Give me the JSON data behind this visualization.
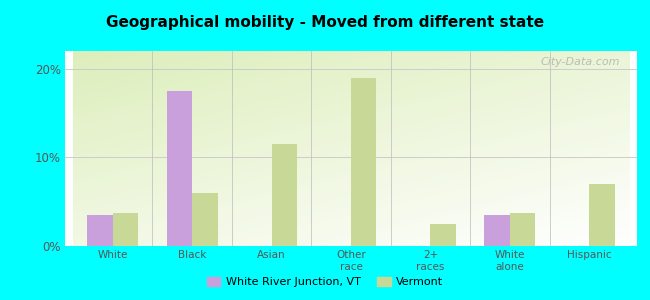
{
  "title": "Geographical mobility - Moved from different state",
  "categories": [
    "White",
    "Black",
    "Asian",
    "Other\nrace",
    "2+\nraces",
    "White\nalone",
    "Hispanic"
  ],
  "wrj_values": [
    3.5,
    17.5,
    0,
    0,
    0,
    3.5,
    0
  ],
  "vt_values": [
    3.7,
    6.0,
    11.5,
    19.0,
    2.5,
    3.7,
    7.0
  ],
  "wrj_color": "#c9a0dc",
  "vt_color": "#c8d896",
  "background_color": "#00ffff",
  "ylim": [
    0,
    22
  ],
  "yticks": [
    0,
    10,
    20
  ],
  "ytick_labels": [
    "0%",
    "10%",
    "20%"
  ],
  "legend_label_wrj": "White River Junction, VT",
  "legend_label_vt": "Vermont",
  "bar_width": 0.32,
  "watermark": "City-Data.com"
}
